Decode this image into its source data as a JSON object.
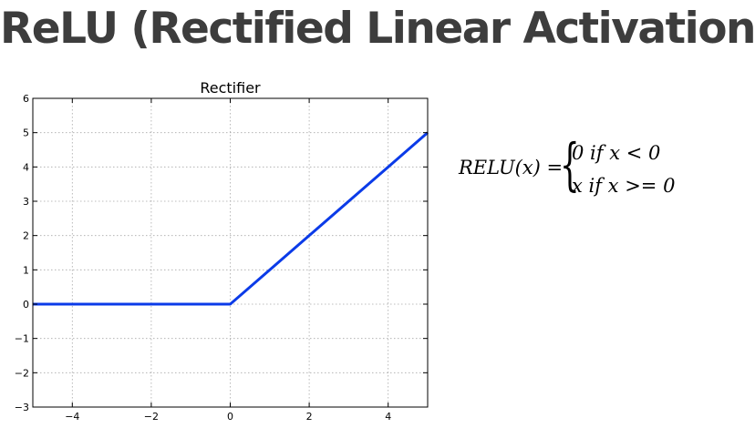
{
  "slide": {
    "title": "ReLU (Rectified Linear Activation)"
  },
  "formula": {
    "lhs": "RELU(x) =",
    "brace": "{",
    "cases": [
      "0 if x < 0",
      "x if x >= 0"
    ]
  },
  "chart_data": {
    "type": "line",
    "title": "Rectifier",
    "xlabel": "",
    "ylabel": "",
    "xlim": [
      -5,
      5
    ],
    "ylim": [
      -3,
      6
    ],
    "xticks": [
      -4,
      -2,
      0,
      2,
      4
    ],
    "yticks": [
      -3,
      -2,
      -1,
      0,
      1,
      2,
      3,
      4,
      5,
      6
    ],
    "grid": true,
    "series": [
      {
        "color": "#0b3be8",
        "x": [
          -5,
          -4,
          -3,
          -2,
          -1,
          0,
          1,
          2,
          3,
          4,
          5
        ],
        "y": [
          0,
          0,
          0,
          0,
          0,
          0,
          1,
          2,
          3,
          4,
          5
        ]
      }
    ]
  }
}
